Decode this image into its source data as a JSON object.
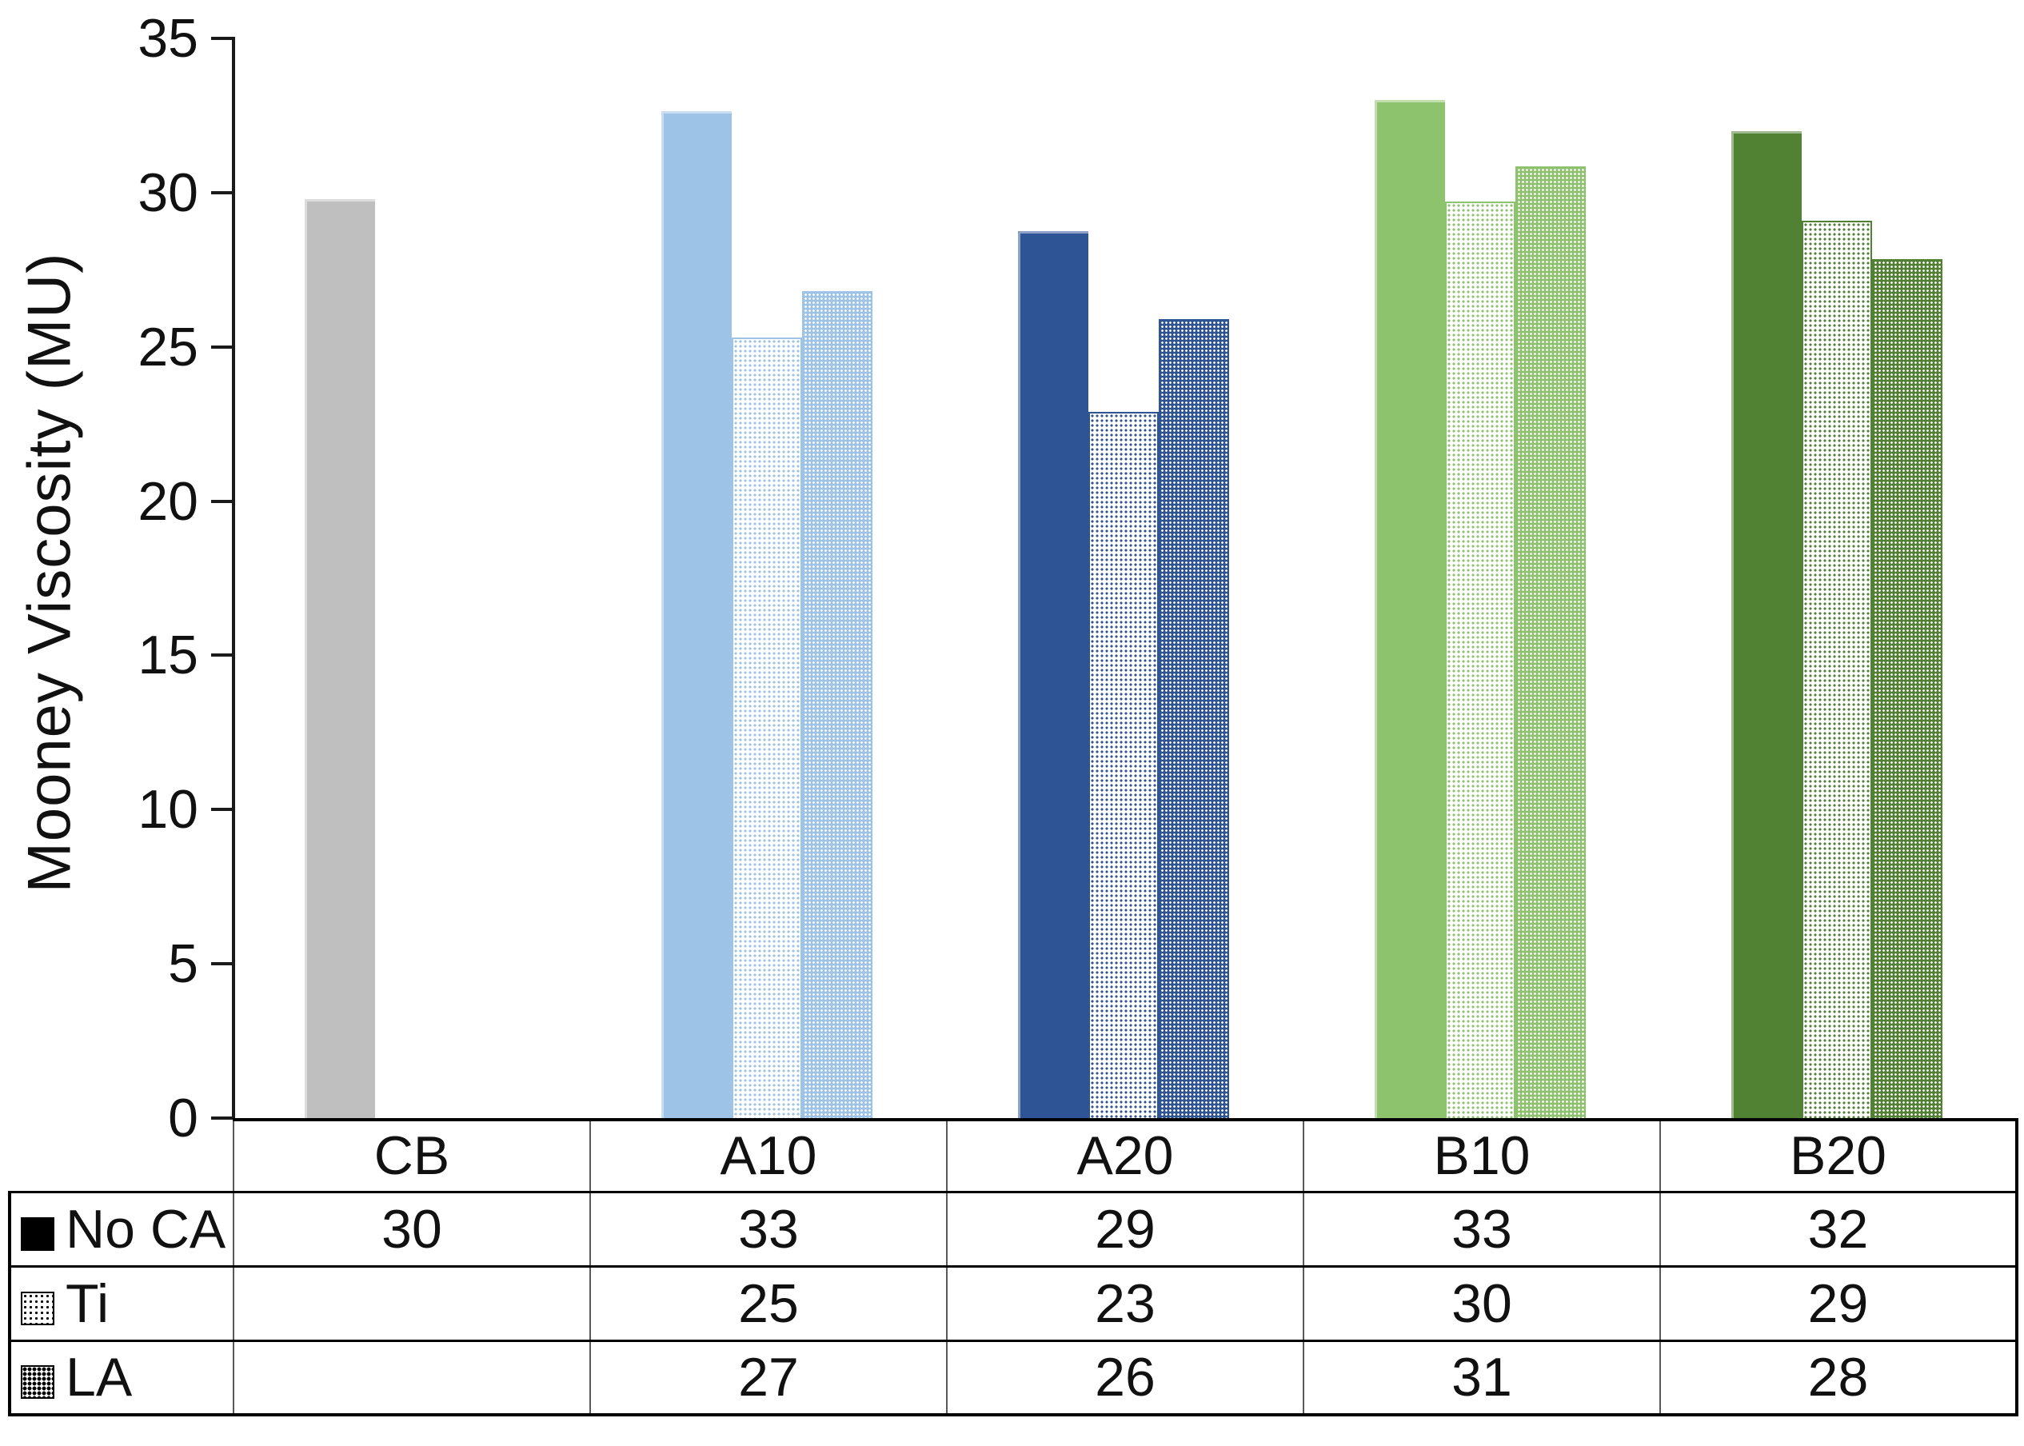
{
  "page": {
    "background": "#ffffff"
  },
  "chart_data": {
    "type": "bar",
    "title": "",
    "ylabel": "Mooney Viscosity (MU)",
    "xlabel": "",
    "ylim": [
      0,
      35
    ],
    "yticks": [
      0,
      5,
      10,
      15,
      20,
      25,
      30,
      35
    ],
    "grid": false,
    "legend_position": "row labels at left of data table below chart",
    "categories": [
      "CB",
      "A10",
      "A20",
      "B10",
      "B20"
    ],
    "category_colors": {
      "CB": "#bfbfbf",
      "A10": "#9dc3e7",
      "A20": "#2f5496",
      "B10": "#8dc36c",
      "B20": "#518233"
    },
    "series": [
      {
        "name": "No CA",
        "fill": "solid",
        "table_values": [
          "30",
          "33",
          "29",
          "33",
          "32"
        ],
        "bar_heights": [
          29.8,
          32.65,
          28.75,
          33,
          32
        ]
      },
      {
        "name": "Ti",
        "fill": "sparse-dots",
        "table_values": [
          "",
          "25",
          "23",
          "30",
          "29"
        ],
        "bar_heights": [
          null,
          25.3,
          22.9,
          29.7,
          29.1
        ]
      },
      {
        "name": "LA",
        "fill": "dense-dots",
        "table_values": [
          "",
          "27",
          "26",
          "31",
          "28"
        ],
        "bar_heights": [
          null,
          26.8,
          25.9,
          30.85,
          27.85
        ]
      }
    ]
  }
}
